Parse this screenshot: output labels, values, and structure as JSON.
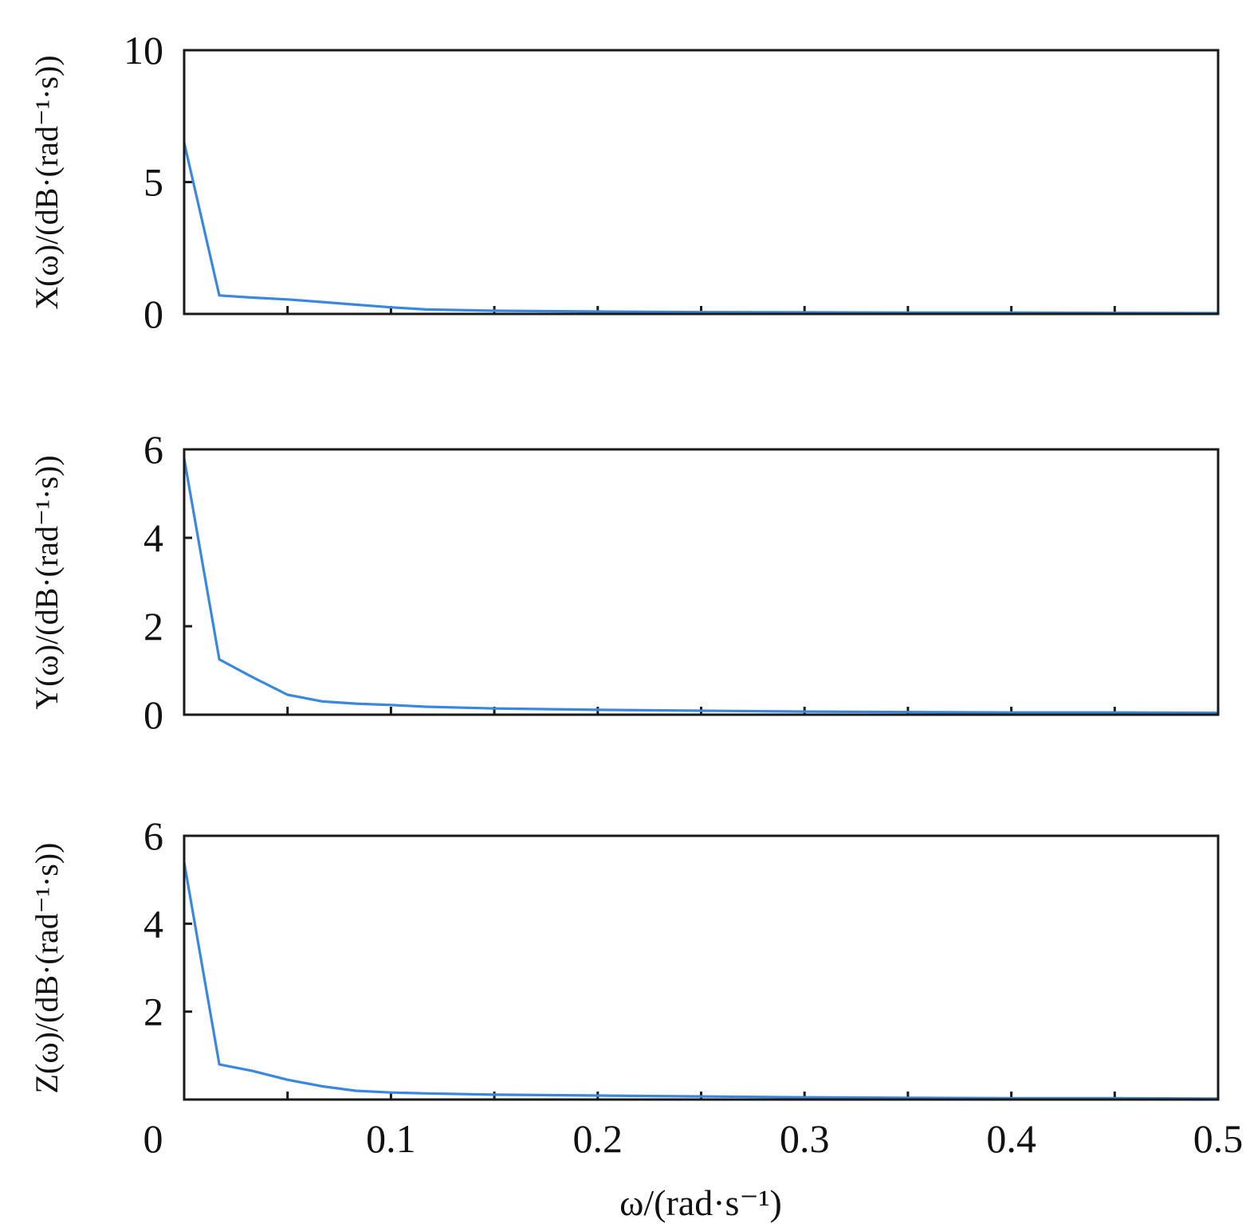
{
  "colors": {
    "line": "#3a87e0",
    "axis": "#1a1a1a",
    "text": "#111111"
  },
  "xaxis": {
    "xlabel": "ω/(rad·s⁻¹)",
    "xlim": [
      0,
      0.5
    ],
    "ticks": [
      0,
      0.05,
      0.1,
      0.15,
      0.2,
      0.25,
      0.3,
      0.35,
      0.4,
      0.45,
      0.5
    ],
    "tick_labels": [
      {
        "value": 0,
        "label": "0"
      },
      {
        "value": 0.1,
        "label": "0.1"
      },
      {
        "value": 0.2,
        "label": "0.2"
      },
      {
        "value": 0.3,
        "label": "0.3"
      },
      {
        "value": 0.4,
        "label": "0.4"
      },
      {
        "value": 0.5,
        "label": "0.5"
      }
    ]
  },
  "chart_data": [
    {
      "type": "line",
      "ylabel": "X(ω)/(dB·(rad⁻¹·s))",
      "xlim": [
        0,
        0.5
      ],
      "ylim": [
        0,
        10
      ],
      "yticks": [
        0,
        5,
        10
      ],
      "ytick_labels": [
        "0",
        "5",
        "10"
      ],
      "grid": false,
      "x": [
        0,
        0.017,
        0.033,
        0.05,
        0.067,
        0.083,
        0.1,
        0.117,
        0.15,
        0.2,
        0.25,
        0.3,
        0.35,
        0.4,
        0.45,
        0.5
      ],
      "y": [
        6.5,
        0.7,
        0.62,
        0.55,
        0.45,
        0.35,
        0.25,
        0.17,
        0.12,
        0.09,
        0.07,
        0.06,
        0.05,
        0.05,
        0.04,
        0.03
      ]
    },
    {
      "type": "line",
      "ylabel": "Y(ω)/(dB·(rad⁻¹·s))",
      "xlim": [
        0,
        0.5
      ],
      "ylim": [
        0,
        6
      ],
      "yticks": [
        0,
        2,
        4,
        6
      ],
      "ytick_labels": [
        "0",
        "2",
        "4",
        "6"
      ],
      "grid": false,
      "x": [
        0,
        0.017,
        0.033,
        0.05,
        0.067,
        0.083,
        0.1,
        0.117,
        0.15,
        0.2,
        0.25,
        0.3,
        0.35,
        0.4,
        0.45,
        0.5
      ],
      "y": [
        5.8,
        1.25,
        0.85,
        0.45,
        0.3,
        0.25,
        0.22,
        0.18,
        0.14,
        0.11,
        0.09,
        0.07,
        0.06,
        0.05,
        0.05,
        0.04
      ]
    },
    {
      "type": "line",
      "ylabel": "Z(ω)/(dB·(rad⁻¹·s))",
      "xlim": [
        0,
        0.5
      ],
      "ylim": [
        0,
        6
      ],
      "yticks": [
        2,
        4,
        6
      ],
      "ytick_labels": [
        "2",
        "4",
        "6"
      ],
      "grid": false,
      "x": [
        0,
        0.017,
        0.033,
        0.05,
        0.067,
        0.083,
        0.1,
        0.117,
        0.15,
        0.2,
        0.25,
        0.3,
        0.35,
        0.4,
        0.45,
        0.5
      ],
      "y": [
        5.4,
        0.8,
        0.65,
        0.45,
        0.3,
        0.2,
        0.16,
        0.14,
        0.11,
        0.09,
        0.07,
        0.05,
        0.04,
        0.03,
        0.03,
        0.02
      ]
    }
  ]
}
